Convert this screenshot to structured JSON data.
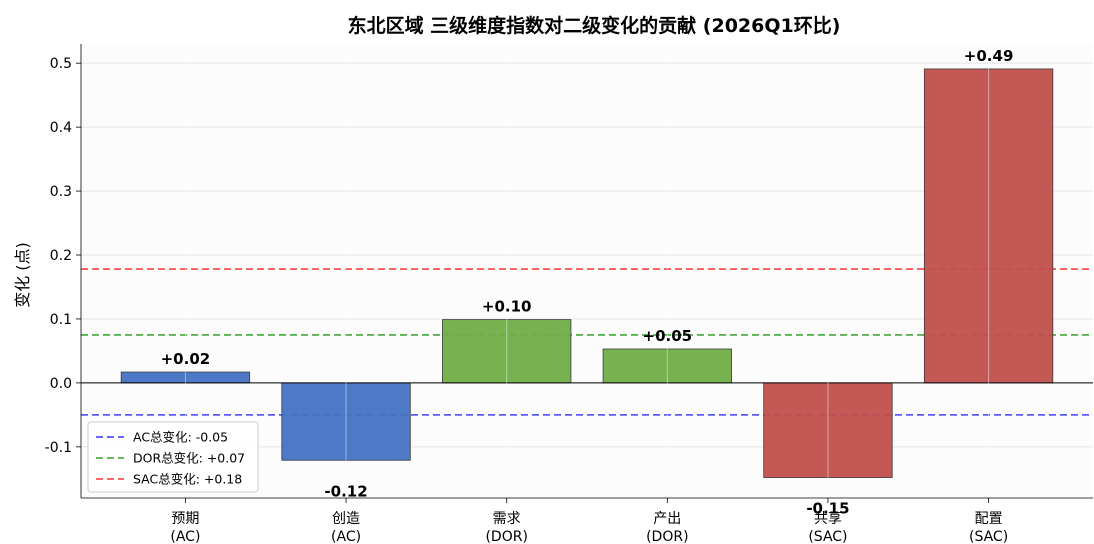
{
  "chart_data": {
    "type": "bar",
    "title": "东北区域 三级维度指数对二级变化的贡献 (2026Q1环比)",
    "ylabel": "变化 (点)",
    "xlabel": "",
    "ylim": [
      -0.18,
      0.53
    ],
    "yticks": [
      -0.1,
      0.0,
      0.1,
      0.2,
      0.3,
      0.4,
      0.5
    ],
    "ytick_labels": [
      "-0.1",
      "0.0",
      "0.1",
      "0.2",
      "0.3",
      "0.4",
      "0.5"
    ],
    "grid": true,
    "categories": [
      {
        "line1": "预期",
        "line2": "(AC)"
      },
      {
        "line1": "创造",
        "line2": "(AC)"
      },
      {
        "line1": "需求",
        "line2": "(DOR)"
      },
      {
        "line1": "产出",
        "line2": "(DOR)"
      },
      {
        "line1": "共享",
        "line2": "(SAC)"
      },
      {
        "line1": "配置",
        "line2": "(SAC)"
      }
    ],
    "values": [
      0.017,
      -0.121,
      0.099,
      0.053,
      -0.148,
      0.491
    ],
    "value_labels": [
      "+0.02",
      "-0.12",
      "+0.10",
      "+0.05",
      "-0.15",
      "+0.49"
    ],
    "bar_colors": [
      "#4472c4",
      "#4472c4",
      "#70ad47",
      "#70ad47",
      "#c0504d",
      "#c0504d"
    ],
    "reference_lines": [
      {
        "label": "AC总变化: -0.05",
        "value": -0.05,
        "color": "#3333ff"
      },
      {
        "label": "DOR总变化: +0.07",
        "value": 0.075,
        "color": "#33a02c"
      },
      {
        "label": "SAC总变化: +0.18",
        "value": 0.178,
        "color": "#ff3333"
      }
    ],
    "legend_position": "lower-left"
  }
}
